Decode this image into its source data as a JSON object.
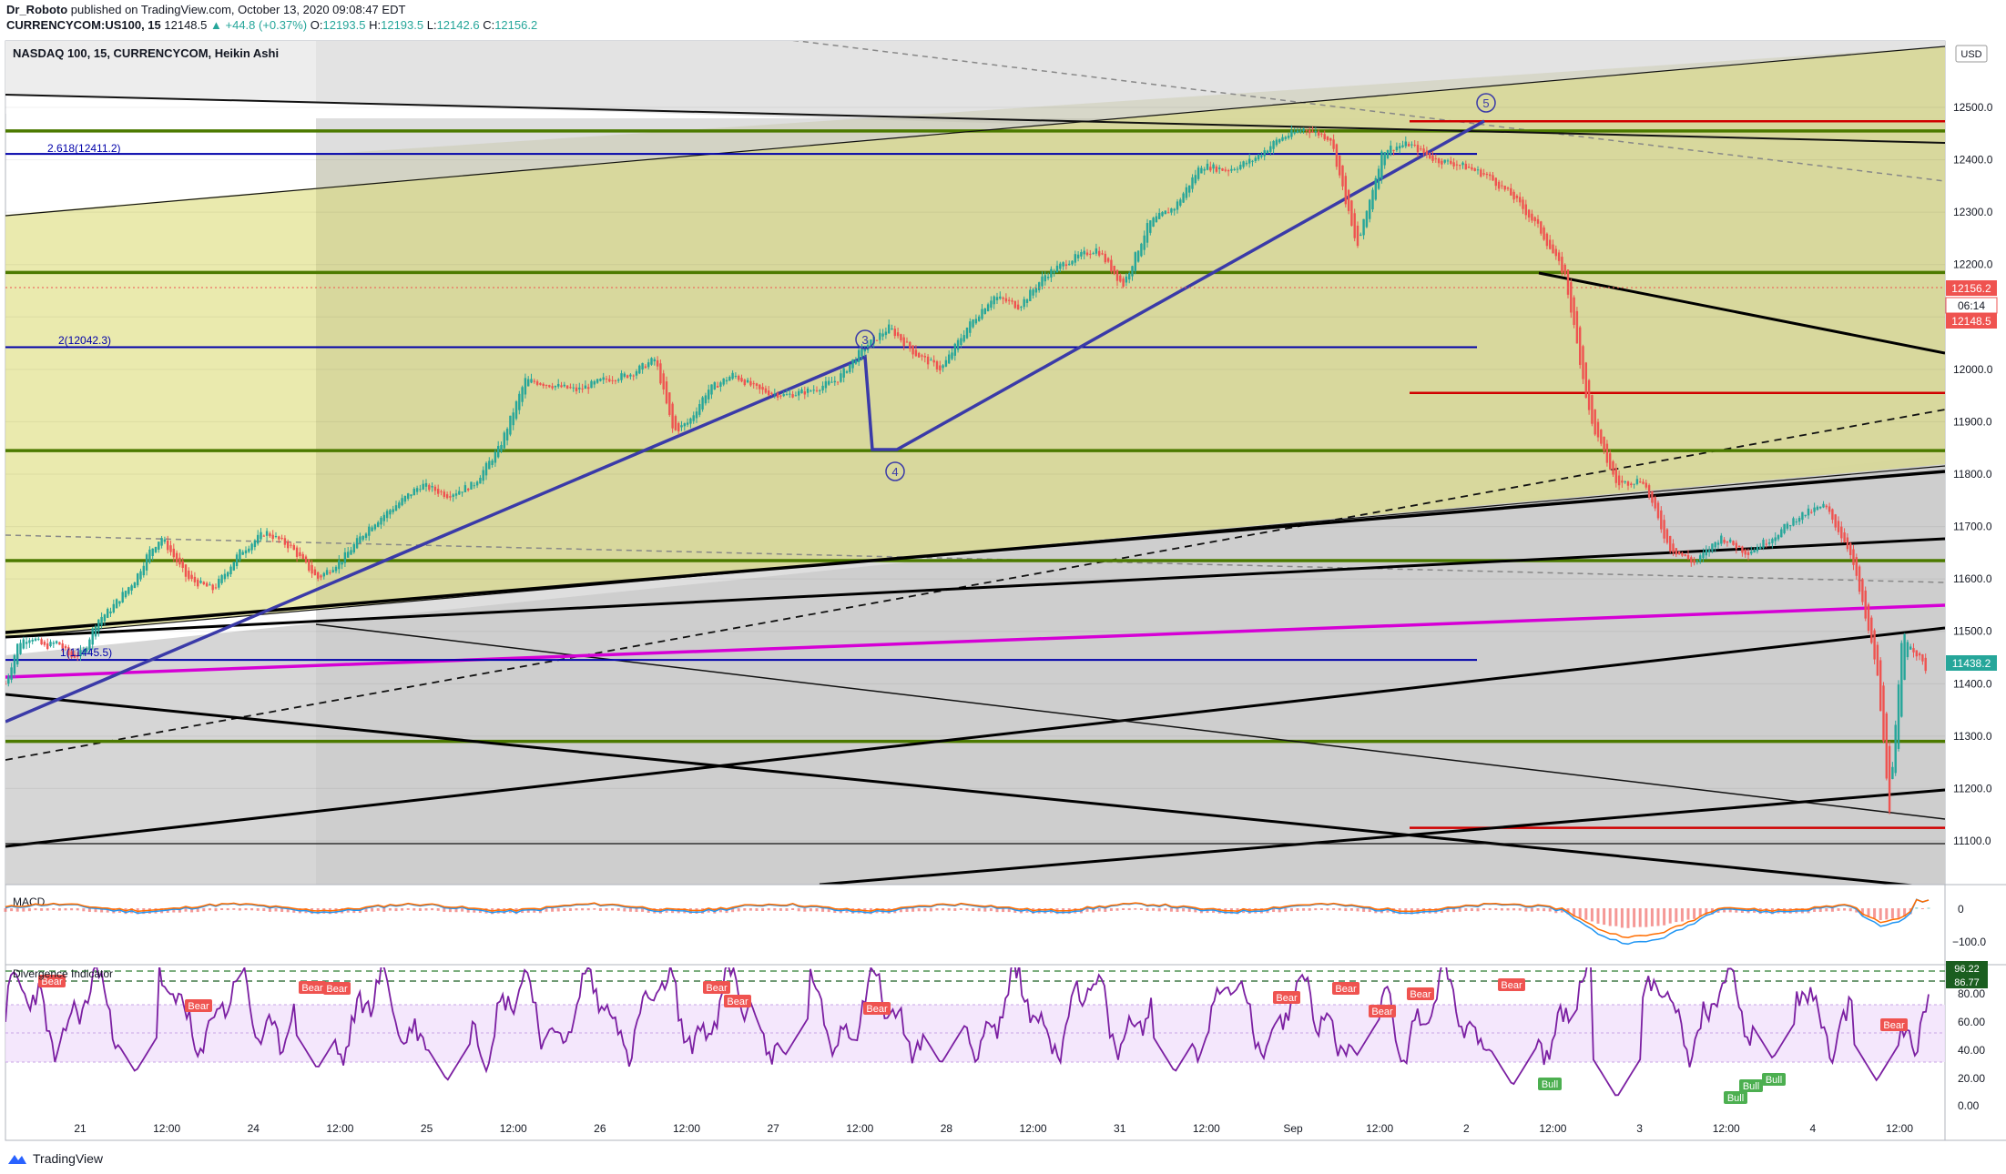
{
  "header": {
    "author": "Dr_Roboto",
    "published": "published on TradingView.com, October 13, 2020 09:08:47 EDT",
    "symbol": "CURRENCYCOM:US100, 15",
    "last": "12148.5",
    "change": "▲ +44.8 (+0.37%)",
    "o_label": "O:",
    "o": "12193.5",
    "h_label": "H:",
    "h": "12193.5",
    "l_label": "L:",
    "l": "12142.6",
    "c_label": "C:",
    "c": "12156.2"
  },
  "chart_title": "NASDAQ 100, 15, CURRENCYCOM, Heikin Ashi",
  "currency_badge": "USD",
  "price_tags": [
    "12156.2",
    "06:14",
    "12148.5",
    "11438.2"
  ],
  "fib_labels": [
    "2.618(12411.2)",
    "2(12042.3)",
    "1(11445.5)"
  ],
  "wave_labels": [
    "5",
    "3",
    "4"
  ],
  "macd_title": "MACD",
  "macd_ticks": [
    "0",
    "−100.0"
  ],
  "div_title": "Divergence Indicator",
  "div_tags": [
    "96.22",
    "86.77"
  ],
  "div_ticks": [
    "80.00",
    "60.00",
    "40.00",
    "20.00",
    "0.00"
  ],
  "bear_labels": [
    "Bear",
    "Bear",
    "Bear",
    "Bear",
    "Bear",
    "Bear",
    "Bear",
    "Bear",
    "Bear",
    "Bear",
    "Bear",
    "Bear",
    "Bear"
  ],
  "bull_labels": [
    "Bull",
    "Bull",
    "Bull",
    "Bull"
  ],
  "footer_brand": "TradingView",
  "colors": {
    "candle_up": "#26a69a",
    "candle_down": "#ef5350",
    "fib_line": "#0000aa",
    "green_level": "#4c7a00",
    "red_level": "#d00000",
    "magenta_trend": "#d500d5",
    "wave_line": "#3a3aa8",
    "rsi_line": "#7b1fa2",
    "yellow_zone": "#e7e7a5",
    "grey_zone": "#d2d2d2"
  },
  "chart_data": {
    "type": "candlestick",
    "series_label": "NASDAQ 100, 15, CURRENCYCOM, Heikin Ashi",
    "x_tick_labels": [
      "21",
      "12:00",
      "24",
      "12:00",
      "25",
      "12:00",
      "26",
      "12:00",
      "27",
      "12:00",
      "28",
      "12:00",
      "31",
      "12:00",
      "Sep",
      "12:00",
      "2",
      "12:00",
      "3",
      "12:00",
      "4",
      "12:00"
    ],
    "y_ticks": [
      12500,
      12400,
      12300,
      12200,
      12100,
      12000,
      11900,
      11800,
      11700,
      11600,
      11500,
      11400,
      11300,
      11200,
      11100
    ],
    "y_tick_labels": [
      "12500.0",
      "12400.0",
      "12300.0",
      "12200.0",
      "12100.0",
      "12000.0",
      "11900.0",
      "11800.0",
      "11700.0",
      "11600.0",
      "11500.0",
      "11400.0",
      "11300.0",
      "11200.0",
      "11100.0"
    ],
    "ylim": [
      11030,
      12615
    ],
    "price_path": [
      [
        0,
        11400
      ],
      [
        0.5,
        11480
      ],
      [
        1,
        11490
      ],
      [
        1.5,
        11470
      ],
      [
        2,
        11480
      ],
      [
        2.5,
        11450
      ],
      [
        3,
        11460
      ],
      [
        3.5,
        11520
      ],
      [
        4,
        11540
      ],
      [
        4.5,
        11570
      ],
      [
        5,
        11600
      ],
      [
        5.5,
        11650
      ],
      [
        6,
        11680
      ],
      [
        7,
        11600
      ],
      [
        8,
        11580
      ],
      [
        9,
        11650
      ],
      [
        10,
        11690
      ],
      [
        11,
        11660
      ],
      [
        12,
        11600
      ],
      [
        13,
        11640
      ],
      [
        14,
        11700
      ],
      [
        15,
        11740
      ],
      [
        16,
        11780
      ],
      [
        17,
        11760
      ],
      [
        18,
        11780
      ],
      [
        19,
        11850
      ],
      [
        20,
        11980
      ],
      [
        21,
        11970
      ],
      [
        22,
        11960
      ],
      [
        23,
        11980
      ],
      [
        24,
        11990
      ],
      [
        25,
        12020
      ],
      [
        25.7,
        11880
      ],
      [
        26.3,
        11900
      ],
      [
        27,
        11960
      ],
      [
        28,
        11990
      ],
      [
        29,
        11960
      ],
      [
        30,
        11950
      ],
      [
        31,
        11960
      ],
      [
        32,
        11980
      ],
      [
        33,
        12040
      ],
      [
        34,
        12080
      ],
      [
        35,
        12030
      ],
      [
        36,
        12000
      ],
      [
        37,
        12080
      ],
      [
        38,
        12140
      ],
      [
        39,
        12120
      ],
      [
        40,
        12180
      ],
      [
        41,
        12210
      ],
      [
        42,
        12230
      ],
      [
        43,
        12160
      ],
      [
        44,
        12280
      ],
      [
        45,
        12310
      ],
      [
        46,
        12390
      ],
      [
        47,
        12380
      ],
      [
        48,
        12400
      ],
      [
        49,
        12440
      ],
      [
        50,
        12460
      ],
      [
        51,
        12440
      ],
      [
        52,
        12230
      ],
      [
        53,
        12420
      ],
      [
        54,
        12430
      ],
      [
        55,
        12400
      ],
      [
        56,
        12390
      ],
      [
        57,
        12370
      ],
      [
        58,
        12330
      ],
      [
        59,
        12270
      ],
      [
        60,
        12180
      ],
      [
        61,
        11900
      ],
      [
        62,
        11780
      ],
      [
        63,
        11790
      ],
      [
        64,
        11660
      ],
      [
        65,
        11630
      ],
      [
        66,
        11680
      ],
      [
        67,
        11650
      ],
      [
        68,
        11680
      ],
      [
        69,
        11720
      ],
      [
        70,
        11740
      ],
      [
        71,
        11650
      ],
      [
        72,
        11430
      ],
      [
        72.5,
        11160
      ],
      [
        73,
        11500
      ],
      [
        74,
        11420
      ]
    ],
    "price_range": [
      11145,
      12470
    ],
    "fib_levels": {
      "2.618": 12411.2,
      "2": 12042.3,
      "1": 11445.5
    },
    "green_levels": [
      12455,
      12185,
      11845,
      11635,
      11290
    ],
    "red_levels": [
      12470,
      11955,
      11125
    ],
    "current_price": 12148.5,
    "current_close": 12156.2,
    "lower_price_tag": 11438.2,
    "elliott_waves": [
      {
        "label": "3",
        "t": 32.5,
        "price": 12020
      },
      {
        "label": "4",
        "t": 33.5,
        "price": 11845
      },
      {
        "label": "5",
        "t": 55.5,
        "price": 12470
      }
    ],
    "macd": {
      "title": "MACD",
      "y_ticks": [
        0,
        -100.0
      ],
      "shape": "oscillates near zero, dips to about -100 near 2 to 3 Sep, recovers late"
    },
    "divergence_indicator": {
      "title": "Divergence Indicator",
      "ylim": [
        0,
        100
      ],
      "y_ticks": [
        80,
        60,
        40,
        20,
        0
      ],
      "levels": [
        96.22,
        86.77
      ],
      "rsi_range": [
        5,
        96
      ]
    }
  }
}
